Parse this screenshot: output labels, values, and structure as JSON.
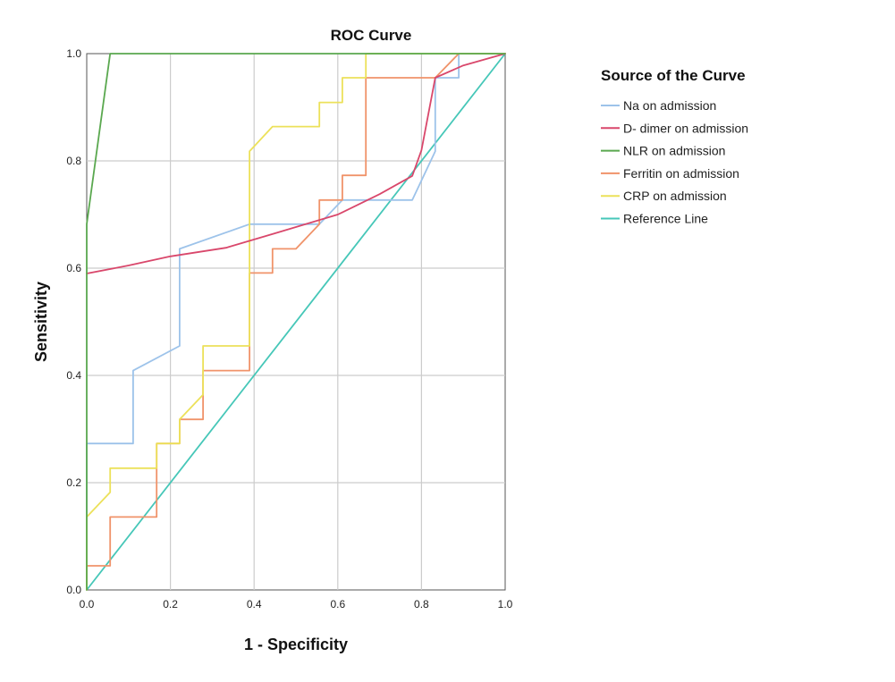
{
  "chart_data": {
    "type": "line",
    "title": "ROC Curve",
    "xlabel": "1 - Specificity",
    "ylabel": "Sensitivity",
    "xlim": [
      0,
      1
    ],
    "ylim": [
      0,
      1
    ],
    "xticks": [
      "0.0",
      "0.2",
      "0.4",
      "0.6",
      "0.8",
      "1.0"
    ],
    "yticks": [
      "0.0",
      "0.2",
      "0.4",
      "0.6",
      "0.8",
      "1.0"
    ],
    "grid": true,
    "legend": {
      "title": "Source of the Curve",
      "placement": "right"
    },
    "series": [
      {
        "name": "Na on admission",
        "color": "#9dc3ea",
        "points": [
          [
            0,
            0
          ],
          [
            0,
            0.273
          ],
          [
            0.111,
            0.273
          ],
          [
            0.111,
            0.409
          ],
          [
            0.222,
            0.455
          ],
          [
            0.222,
            0.636
          ],
          [
            0.389,
            0.682
          ],
          [
            0.556,
            0.682
          ],
          [
            0.611,
            0.727
          ],
          [
            0.778,
            0.727
          ],
          [
            0.833,
            0.818
          ],
          [
            0.833,
            0.955
          ],
          [
            0.889,
            0.955
          ],
          [
            0.889,
            1
          ],
          [
            1,
            1
          ]
        ]
      },
      {
        "name": "D- dimer  on admission",
        "color": "#d9476b",
        "points": [
          [
            0,
            0.59
          ],
          [
            0.1,
            0.605
          ],
          [
            0.2,
            0.622
          ],
          [
            0.333,
            0.638
          ],
          [
            0.45,
            0.665
          ],
          [
            0.6,
            0.7
          ],
          [
            0.7,
            0.738
          ],
          [
            0.778,
            0.772
          ],
          [
            0.8,
            0.82
          ],
          [
            0.833,
            0.955
          ],
          [
            0.9,
            0.978
          ],
          [
            1,
            1
          ]
        ]
      },
      {
        "name": "NLR  on admission",
        "color": "#5aa84f",
        "points": [
          [
            0,
            0
          ],
          [
            0,
            0.682
          ],
          [
            0.056,
            1
          ],
          [
            1,
            1
          ]
        ]
      },
      {
        "name": "Ferritin  on admission",
        "color": "#f0936a",
        "points": [
          [
            0,
            0
          ],
          [
            0,
            0.045
          ],
          [
            0.056,
            0.045
          ],
          [
            0.056,
            0.136
          ],
          [
            0.167,
            0.136
          ],
          [
            0.167,
            0.273
          ],
          [
            0.222,
            0.273
          ],
          [
            0.222,
            0.318
          ],
          [
            0.278,
            0.318
          ],
          [
            0.278,
            0.409
          ],
          [
            0.389,
            0.409
          ],
          [
            0.389,
            0.591
          ],
          [
            0.444,
            0.591
          ],
          [
            0.444,
            0.636
          ],
          [
            0.5,
            0.636
          ],
          [
            0.556,
            0.682
          ],
          [
            0.556,
            0.727
          ],
          [
            0.611,
            0.727
          ],
          [
            0.611,
            0.773
          ],
          [
            0.667,
            0.773
          ],
          [
            0.667,
            0.955
          ],
          [
            0.833,
            0.955
          ],
          [
            0.889,
            1
          ],
          [
            1,
            1
          ]
        ]
      },
      {
        "name": "CRP  on admission",
        "color": "#ece15a",
        "points": [
          [
            0,
            0
          ],
          [
            0,
            0.136
          ],
          [
            0.056,
            0.182
          ],
          [
            0.056,
            0.227
          ],
          [
            0.167,
            0.227
          ],
          [
            0.167,
            0.273
          ],
          [
            0.222,
            0.273
          ],
          [
            0.222,
            0.318
          ],
          [
            0.278,
            0.364
          ],
          [
            0.278,
            0.455
          ],
          [
            0.389,
            0.455
          ],
          [
            0.389,
            0.818
          ],
          [
            0.444,
            0.864
          ],
          [
            0.556,
            0.864
          ],
          [
            0.556,
            0.909
          ],
          [
            0.611,
            0.909
          ],
          [
            0.611,
            0.955
          ],
          [
            0.667,
            0.955
          ],
          [
            0.667,
            1
          ],
          [
            1,
            1
          ]
        ]
      },
      {
        "name": "Reference Line",
        "color": "#46c7b8",
        "points": [
          [
            0,
            0
          ],
          [
            1,
            1
          ]
        ]
      }
    ]
  }
}
